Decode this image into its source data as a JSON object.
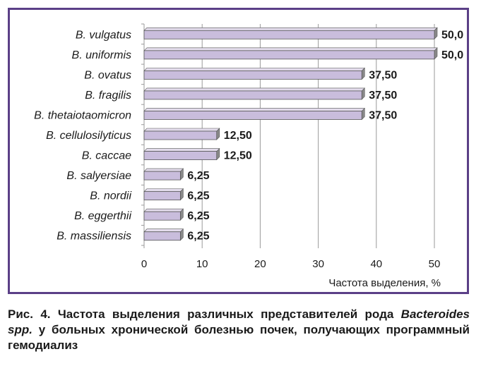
{
  "chart_data": {
    "type": "bar",
    "orientation": "horizontal",
    "categories": [
      "B. vulgatus",
      "B. uniformis",
      "B. ovatus",
      "B. fragilis",
      "B. thetaiotaomicron",
      "B. cellulosilyticus",
      "B. caccae",
      "B. salyersiae",
      "B. nordii",
      "B. eggerthii",
      "B. massiliensis"
    ],
    "values": [
      50.0,
      50.0,
      37.5,
      37.5,
      37.5,
      12.5,
      12.5,
      6.25,
      6.25,
      6.25,
      6.25
    ],
    "value_labels": [
      "50,0",
      "50,0",
      "37,50",
      "37,50",
      "37,50",
      "12,50",
      "12,50",
      "6,25",
      "6,25",
      "6,25",
      "6,25"
    ],
    "xticks": [
      "0",
      "10",
      "20",
      "30",
      "40",
      "50"
    ],
    "xlim": [
      0,
      50
    ],
    "xlabel": "Частота выделения, %",
    "ylabel": "",
    "grid": true,
    "bar_color": "#c9bddc",
    "bar_edge_color": "#555555"
  },
  "caption": {
    "prefix": "Рис. 4. Частота выделения различных представителей рода ",
    "italic": "Bacteroides spp.",
    "suffix": " у больных хронической болезнью почек, получающих программный гемодиализ"
  },
  "colors": {
    "frame": "#5b3f87",
    "bar_fill": "#c9bddc",
    "bar_shade": "#8a8a8a",
    "grid": "#9a9a9a",
    "text": "#1a1a1a"
  }
}
